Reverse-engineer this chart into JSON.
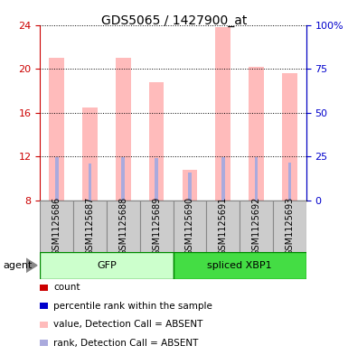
{
  "title": "GDS5065 / 1427900_at",
  "samples": [
    "GSM1125686",
    "GSM1125687",
    "GSM1125688",
    "GSM1125689",
    "GSM1125690",
    "GSM1125691",
    "GSM1125692",
    "GSM1125693"
  ],
  "pink_values": [
    21.0,
    16.5,
    21.0,
    18.8,
    10.8,
    23.8,
    20.2,
    19.6
  ],
  "blue_values": [
    11.95,
    11.4,
    11.95,
    11.9,
    10.55,
    11.95,
    11.95,
    11.45
  ],
  "ylim_left": [
    8,
    24
  ],
  "ylim_right": [
    0,
    100
  ],
  "yticks_left": [
    8,
    12,
    16,
    20,
    24
  ],
  "yticks_right": [
    0,
    25,
    50,
    75,
    100
  ],
  "ytick_labels_right": [
    "0",
    "25",
    "50",
    "75",
    "100%"
  ],
  "left_axis_color": "#cc0000",
  "right_axis_color": "#0000cc",
  "bar_bottom": 8,
  "pink_color": "#ffbbbb",
  "blue_color": "#aaaadd",
  "gfp_light": "#ccffcc",
  "gfp_dark": "#44dd44",
  "xbp1_light": "#44dd44",
  "xbp1_dark": "#44dd44",
  "gray_box": "#cccccc",
  "legend_items": [
    {
      "color": "#cc0000",
      "label": "count"
    },
    {
      "color": "#0000cc",
      "label": "percentile rank within the sample"
    },
    {
      "color": "#ffbbbb",
      "label": "value, Detection Call = ABSENT"
    },
    {
      "color": "#aaaadd",
      "label": "rank, Detection Call = ABSENT"
    }
  ],
  "group_defs": [
    {
      "label": "GFP",
      "start": 0,
      "end": 3,
      "face": "#ccffcc",
      "edge": "#008800"
    },
    {
      "label": "spliced XBP1",
      "start": 4,
      "end": 7,
      "face": "#44dd44",
      "edge": "#008800"
    }
  ]
}
